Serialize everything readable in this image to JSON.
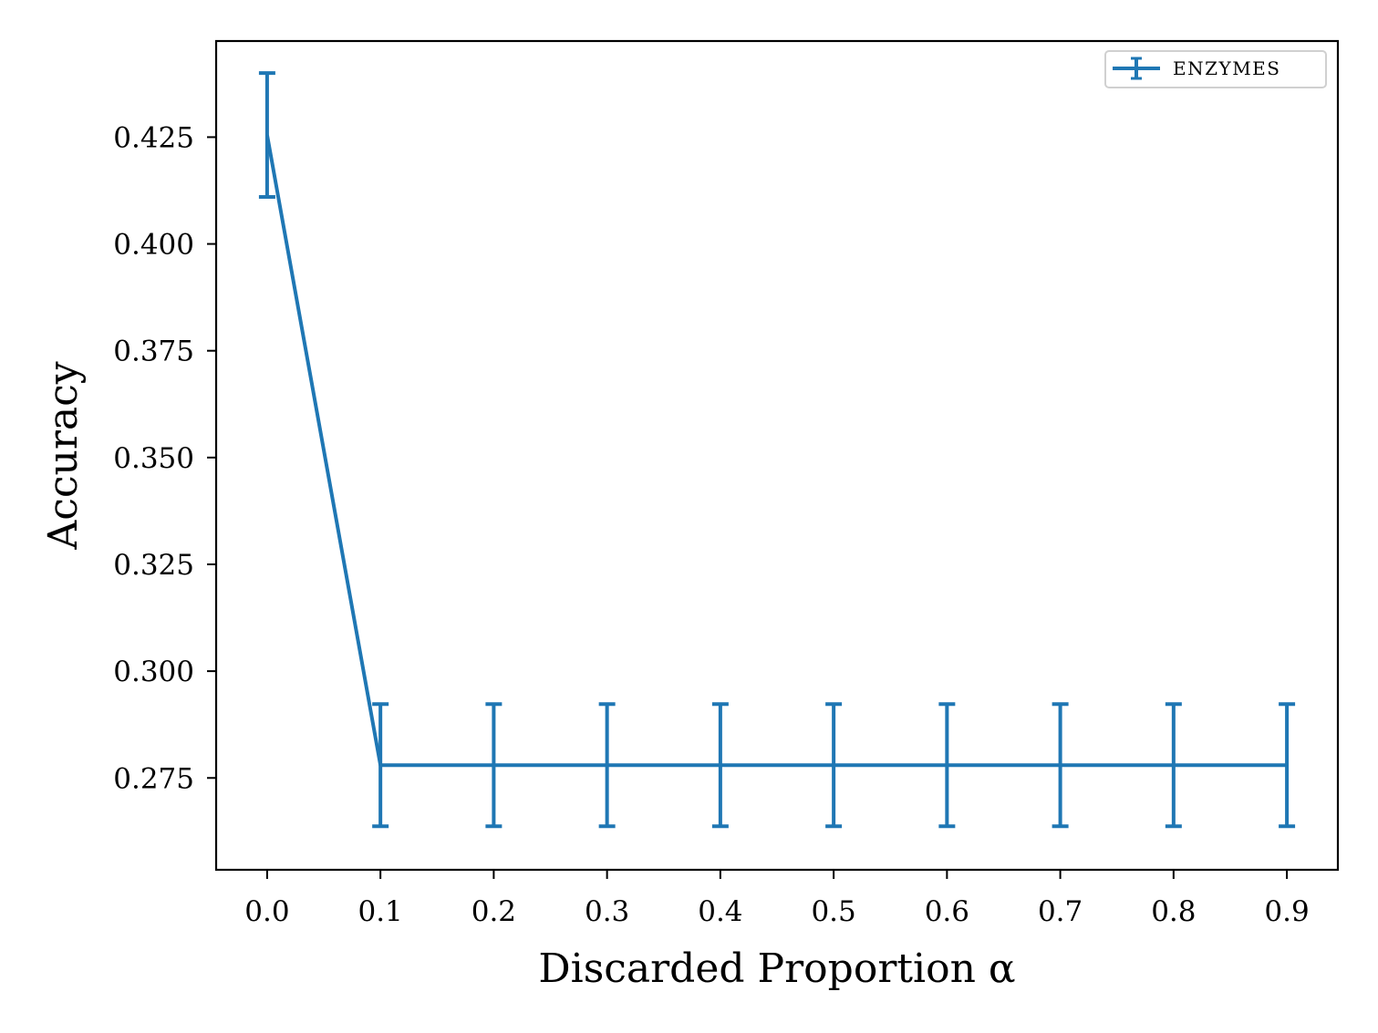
{
  "chart_data": {
    "type": "line",
    "title": "",
    "xlabel": "Discarded Proportion α",
    "ylabel": "Accuracy",
    "x": [
      0.0,
      0.1,
      0.2,
      0.3,
      0.4,
      0.5,
      0.6,
      0.7,
      0.8,
      0.9
    ],
    "xticks": [
      "0.0",
      "0.1",
      "0.2",
      "0.3",
      "0.4",
      "0.5",
      "0.6",
      "0.7",
      "0.8",
      "0.9"
    ],
    "yticks": [
      "0.275",
      "0.300",
      "0.325",
      "0.350",
      "0.375",
      "0.400",
      "0.425"
    ],
    "xlim": [
      -0.045,
      0.945
    ],
    "ylim": [
      0.2535,
      0.4475
    ],
    "grid": false,
    "legend_position": "top-right",
    "color": "#1f77b4",
    "series": [
      {
        "name": "ENZYMES",
        "values": [
          0.4255,
          0.278,
          0.278,
          0.278,
          0.278,
          0.278,
          0.278,
          0.278,
          0.278,
          0.278
        ],
        "error": [
          0.0145,
          0.0143,
          0.0143,
          0.0143,
          0.0143,
          0.0143,
          0.0143,
          0.0143,
          0.0143,
          0.0143
        ]
      }
    ]
  }
}
